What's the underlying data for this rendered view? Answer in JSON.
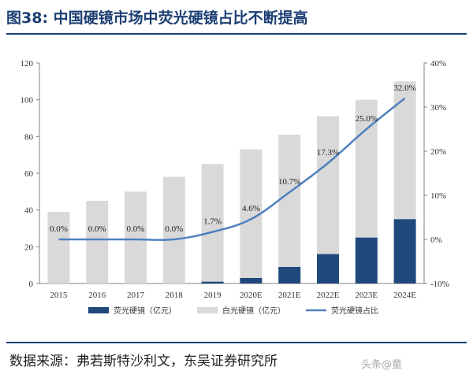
{
  "header": {
    "title": "图38:  中国硬镜市场中荧光硬镜占比不断提高"
  },
  "source": {
    "text": "数据来源：弗若斯特沙利文，东吴证券研究所"
  },
  "watermark": {
    "text": "头条@童"
  },
  "colors": {
    "fluorescent": "#1f497d",
    "white_light": "#d9d9d9",
    "share_line": "#4f81bd",
    "title": "#1c3f73"
  },
  "chart_data": {
    "type": "bar",
    "stacked": true,
    "categories": [
      "2015",
      "2016",
      "2017",
      "2018",
      "2019",
      "2020E",
      "2021E",
      "2022E",
      "2023E",
      "2024E"
    ],
    "series": [
      {
        "name": "荧光硬镜（亿元）",
        "type": "bar",
        "axis": "left",
        "color": "#1f497d",
        "values": [
          0,
          0,
          0,
          0,
          1,
          3,
          9,
          16,
          25,
          35
        ]
      },
      {
        "name": "白光硬镜（亿元）",
        "type": "bar",
        "axis": "left",
        "color": "#d9d9d9",
        "values": [
          39,
          45,
          50,
          58,
          64,
          70,
          72,
          75,
          75,
          75
        ]
      },
      {
        "name": "荧光硬镜占比",
        "type": "line",
        "axis": "right",
        "color": "#4f81bd",
        "values": [
          0.0,
          0.0,
          0.0,
          0.0,
          1.7,
          4.6,
          10.7,
          17.3,
          25.0,
          32.0
        ]
      }
    ],
    "data_labels": [
      "0.0%",
      "0.0%",
      "0.0%",
      "0.0%",
      "1.7%",
      "4.6%",
      "10.7%",
      "17.3%",
      "25.0%",
      "32.0%"
    ],
    "ylim": [
      0,
      120
    ],
    "yticks": [
      "0",
      "20",
      "40",
      "60",
      "80",
      "100",
      "120"
    ],
    "y2lim": [
      -10,
      40
    ],
    "y2ticks": [
      "-10%",
      "0%",
      "10%",
      "20%",
      "30%",
      "40%"
    ],
    "legend_position": "bottom",
    "grid": false
  }
}
